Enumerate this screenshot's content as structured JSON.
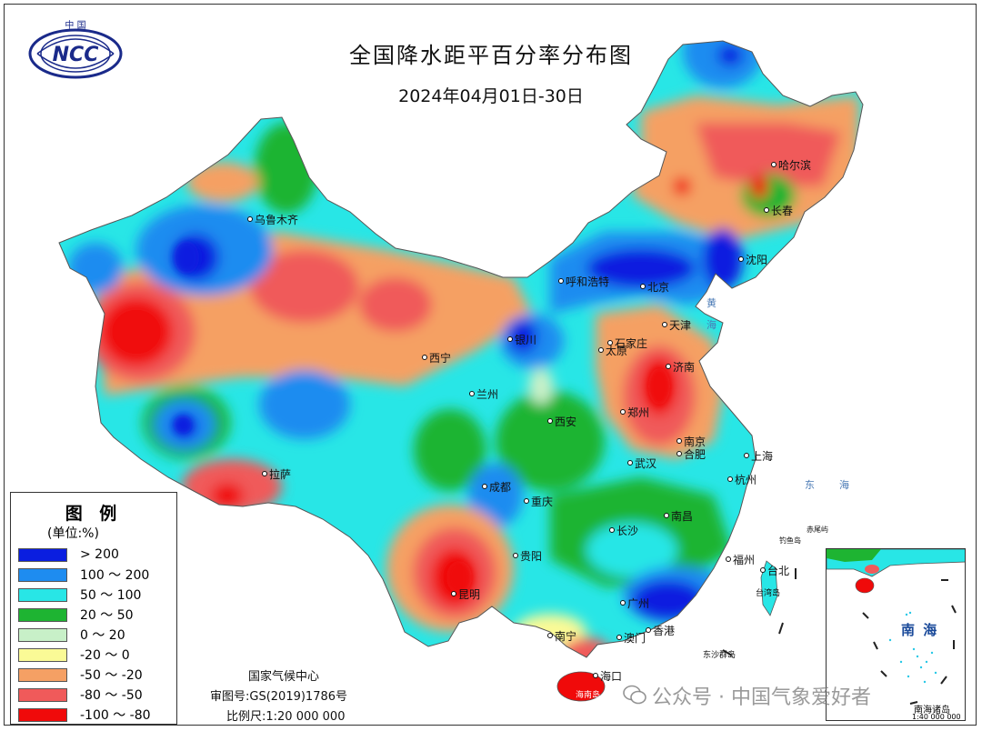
{
  "header": {
    "title": "全国降水距平百分率分布图",
    "date_range": "2024年04月01日-30日"
  },
  "logo": {
    "top_text": "中 国",
    "mark": "NCC",
    "icon": "ncc-globe-icon"
  },
  "legend": {
    "title": "图 例",
    "unit": "(单位:%)",
    "items": [
      {
        "label": "> 200",
        "color": "#0a1ee0"
      },
      {
        "label": "100 ～ 200",
        "color": "#1e8cf0"
      },
      {
        "label": "50 ～ 100",
        "color": "#28e6e6"
      },
      {
        "label": "20 ～ 50",
        "color": "#1eb432"
      },
      {
        "label": "0 ～ 20",
        "color": "#c8f0c8"
      },
      {
        "label": "-20 ～ 0",
        "color": "#fafa96"
      },
      {
        "label": "-50 ～ -20",
        "color": "#f5a064"
      },
      {
        "label": "-80 ～ -50",
        "color": "#f05a5a"
      },
      {
        "label": "-100 ～ -80",
        "color": "#f00a0a"
      }
    ]
  },
  "credits": {
    "agency": "国家气候中心",
    "approval": "审图号:GS(2019)1786号",
    "scale": "比例尺:1:20 000 000"
  },
  "cities": [
    {
      "name": "乌鲁木齐"
    },
    {
      "name": "哈尔滨"
    },
    {
      "name": "长春"
    },
    {
      "name": "沈阳"
    },
    {
      "name": "呼和浩特"
    },
    {
      "name": "北京"
    },
    {
      "name": "天津"
    },
    {
      "name": "石家庄"
    },
    {
      "name": "太原"
    },
    {
      "name": "济南"
    },
    {
      "name": "银川"
    },
    {
      "name": "西宁"
    },
    {
      "name": "兰州"
    },
    {
      "name": "西安"
    },
    {
      "name": "郑州"
    },
    {
      "name": "南京"
    },
    {
      "name": "合肥"
    },
    {
      "name": "上海"
    },
    {
      "name": "武汉"
    },
    {
      "name": "杭州"
    },
    {
      "name": "拉萨"
    },
    {
      "name": "成都"
    },
    {
      "name": "重庆"
    },
    {
      "name": "长沙"
    },
    {
      "name": "南昌"
    },
    {
      "name": "贵阳"
    },
    {
      "name": "福州"
    },
    {
      "name": "台北"
    },
    {
      "name": "昆明"
    },
    {
      "name": "广州"
    },
    {
      "name": "香港"
    },
    {
      "name": "澳门"
    },
    {
      "name": "南宁"
    },
    {
      "name": "海口"
    }
  ],
  "sea_labels": [
    "黄",
    "海",
    "东",
    "海"
  ],
  "islands": {
    "east_sea": [
      "赤尾屿",
      "钓鱼岛"
    ],
    "taiwan": "台湾岛",
    "hainan": "海南岛",
    "dongsha": "东沙群岛"
  },
  "inset": {
    "sea_name": "南 海",
    "name": "南海诸岛",
    "scale": "1:40 000 000"
  },
  "watermark": {
    "text": "公众号 · 中国气象爱好者",
    "icon": "wechat-icon"
  }
}
